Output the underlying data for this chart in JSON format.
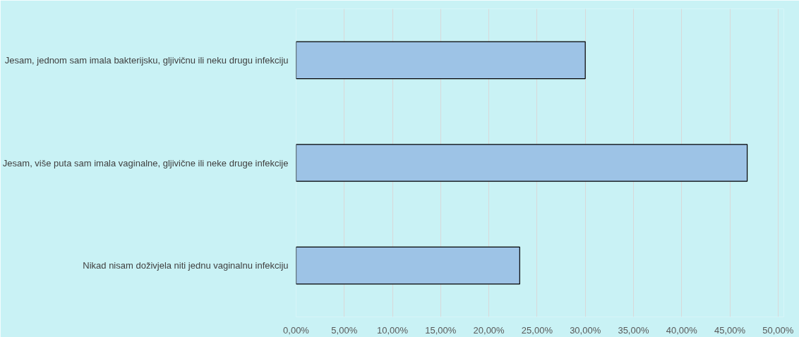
{
  "chart_data": {
    "type": "bar",
    "orientation": "horizontal",
    "categories": [
      "Jesam, jednom sam imala bakterijsku, gljivičnu ili neku drugu infekciju",
      "Jesam, više puta sam imala vaginalne, gljivične ili neke druge infekcije",
      "Nikad nisam doživjela niti jednu vaginalnu infekciju"
    ],
    "values": [
      30.0,
      46.8,
      23.2
    ],
    "color": "#9dc3e6",
    "xlim": [
      0,
      50
    ],
    "xticks": [
      {
        "value": 0,
        "label": "0,00%"
      },
      {
        "value": 5,
        "label": "5,00%"
      },
      {
        "value": 10,
        "label": "10,00%"
      },
      {
        "value": 15,
        "label": "15,00%"
      },
      {
        "value": 20,
        "label": "20,00%"
      },
      {
        "value": 25,
        "label": "25,00%"
      },
      {
        "value": 30,
        "label": "30,00%"
      },
      {
        "value": 35,
        "label": "35,00%"
      },
      {
        "value": 40,
        "label": "40,00%"
      },
      {
        "value": 45,
        "label": "45,00%"
      },
      {
        "value": 50,
        "label": "50,00%"
      }
    ],
    "grid": "x"
  }
}
